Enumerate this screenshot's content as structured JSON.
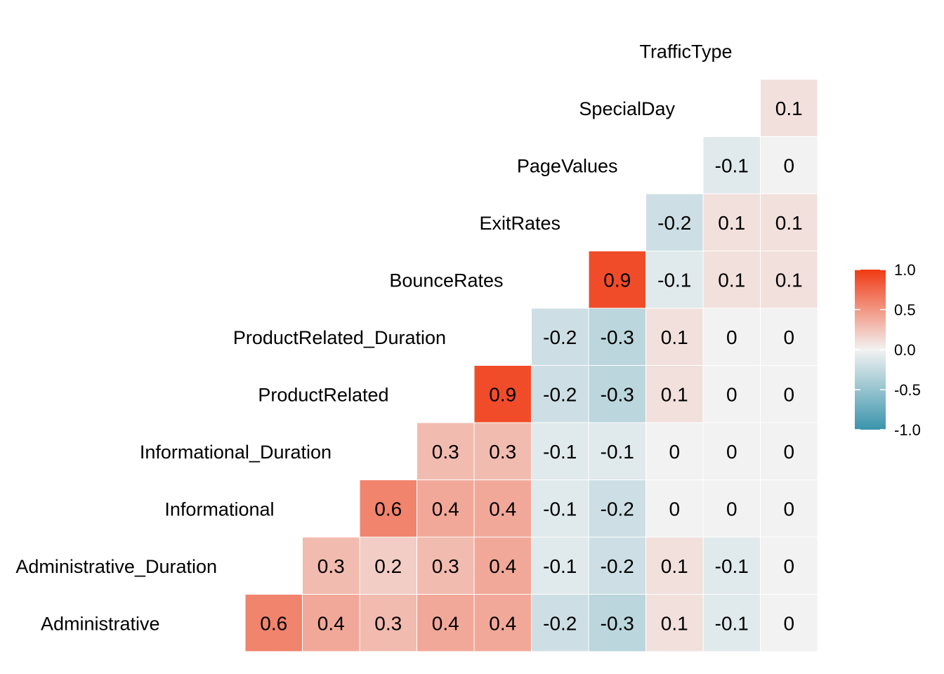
{
  "chart_data": {
    "type": "heatmap",
    "title": "",
    "variables": [
      "Administrative",
      "Administrative_Duration",
      "Informational",
      "Informational_Duration",
      "ProductRelated",
      "ProductRelated_Duration",
      "BounceRates",
      "ExitRates",
      "PageValues",
      "SpecialDay",
      "TrafficType"
    ],
    "cells": [
      {
        "row": "Administrative",
        "col": "Administrative_Duration",
        "value": 0.6
      },
      {
        "row": "Administrative",
        "col": "Informational",
        "value": 0.4
      },
      {
        "row": "Administrative",
        "col": "Informational_Duration",
        "value": 0.3
      },
      {
        "row": "Administrative",
        "col": "ProductRelated",
        "value": 0.4
      },
      {
        "row": "Administrative",
        "col": "ProductRelated_Duration",
        "value": 0.4
      },
      {
        "row": "Administrative",
        "col": "BounceRates",
        "value": -0.2
      },
      {
        "row": "Administrative",
        "col": "ExitRates",
        "value": -0.3
      },
      {
        "row": "Administrative",
        "col": "PageValues",
        "value": 0.1
      },
      {
        "row": "Administrative",
        "col": "SpecialDay",
        "value": -0.1
      },
      {
        "row": "Administrative",
        "col": "TrafficType",
        "value": 0
      },
      {
        "row": "Administrative_Duration",
        "col": "Informational",
        "value": 0.3
      },
      {
        "row": "Administrative_Duration",
        "col": "Informational_Duration",
        "value": 0.2
      },
      {
        "row": "Administrative_Duration",
        "col": "ProductRelated",
        "value": 0.3
      },
      {
        "row": "Administrative_Duration",
        "col": "ProductRelated_Duration",
        "value": 0.4
      },
      {
        "row": "Administrative_Duration",
        "col": "BounceRates",
        "value": -0.1
      },
      {
        "row": "Administrative_Duration",
        "col": "ExitRates",
        "value": -0.2
      },
      {
        "row": "Administrative_Duration",
        "col": "PageValues",
        "value": 0.1
      },
      {
        "row": "Administrative_Duration",
        "col": "SpecialDay",
        "value": -0.1
      },
      {
        "row": "Administrative_Duration",
        "col": "TrafficType",
        "value": 0
      },
      {
        "row": "Informational",
        "col": "Informational_Duration",
        "value": 0.6
      },
      {
        "row": "Informational",
        "col": "ProductRelated",
        "value": 0.4
      },
      {
        "row": "Informational",
        "col": "ProductRelated_Duration",
        "value": 0.4
      },
      {
        "row": "Informational",
        "col": "BounceRates",
        "value": -0.1
      },
      {
        "row": "Informational",
        "col": "ExitRates",
        "value": -0.2
      },
      {
        "row": "Informational",
        "col": "PageValues",
        "value": 0
      },
      {
        "row": "Informational",
        "col": "SpecialDay",
        "value": 0
      },
      {
        "row": "Informational",
        "col": "TrafficType",
        "value": 0
      },
      {
        "row": "Informational_Duration",
        "col": "ProductRelated",
        "value": 0.3
      },
      {
        "row": "Informational_Duration",
        "col": "ProductRelated_Duration",
        "value": 0.3
      },
      {
        "row": "Informational_Duration",
        "col": "BounceRates",
        "value": -0.1
      },
      {
        "row": "Informational_Duration",
        "col": "ExitRates",
        "value": -0.1
      },
      {
        "row": "Informational_Duration",
        "col": "PageValues",
        "value": 0
      },
      {
        "row": "Informational_Duration",
        "col": "SpecialDay",
        "value": 0
      },
      {
        "row": "Informational_Duration",
        "col": "TrafficType",
        "value": 0
      },
      {
        "row": "ProductRelated",
        "col": "ProductRelated_Duration",
        "value": 0.9
      },
      {
        "row": "ProductRelated",
        "col": "BounceRates",
        "value": -0.2
      },
      {
        "row": "ProductRelated",
        "col": "ExitRates",
        "value": -0.3
      },
      {
        "row": "ProductRelated",
        "col": "PageValues",
        "value": 0.1
      },
      {
        "row": "ProductRelated",
        "col": "SpecialDay",
        "value": 0
      },
      {
        "row": "ProductRelated",
        "col": "TrafficType",
        "value": 0
      },
      {
        "row": "ProductRelated_Duration",
        "col": "BounceRates",
        "value": -0.2
      },
      {
        "row": "ProductRelated_Duration",
        "col": "ExitRates",
        "value": -0.3
      },
      {
        "row": "ProductRelated_Duration",
        "col": "PageValues",
        "value": 0.1
      },
      {
        "row": "ProductRelated_Duration",
        "col": "SpecialDay",
        "value": 0
      },
      {
        "row": "ProductRelated_Duration",
        "col": "TrafficType",
        "value": 0
      },
      {
        "row": "BounceRates",
        "col": "ExitRates",
        "value": 0.9
      },
      {
        "row": "BounceRates",
        "col": "PageValues",
        "value": -0.1
      },
      {
        "row": "BounceRates",
        "col": "SpecialDay",
        "value": 0.1
      },
      {
        "row": "BounceRates",
        "col": "TrafficType",
        "value": 0.1
      },
      {
        "row": "ExitRates",
        "col": "PageValues",
        "value": -0.2
      },
      {
        "row": "ExitRates",
        "col": "SpecialDay",
        "value": 0.1
      },
      {
        "row": "ExitRates",
        "col": "TrafficType",
        "value": 0.1
      },
      {
        "row": "PageValues",
        "col": "SpecialDay",
        "value": -0.1
      },
      {
        "row": "PageValues",
        "col": "TrafficType",
        "value": 0
      },
      {
        "row": "SpecialDay",
        "col": "TrafficType",
        "value": 0.1
      }
    ],
    "legend": {
      "ticks": [
        "1.0",
        "0.5",
        "0.0",
        "-0.5",
        "-1.0"
      ],
      "limits": [
        -1,
        1
      ],
      "placement": "right"
    },
    "colors": {
      "low": "#3a94ac",
      "mid": "#f2f2f2",
      "high": "#f13a14",
      "cell_border": "#ffffff"
    },
    "grid": false
  }
}
